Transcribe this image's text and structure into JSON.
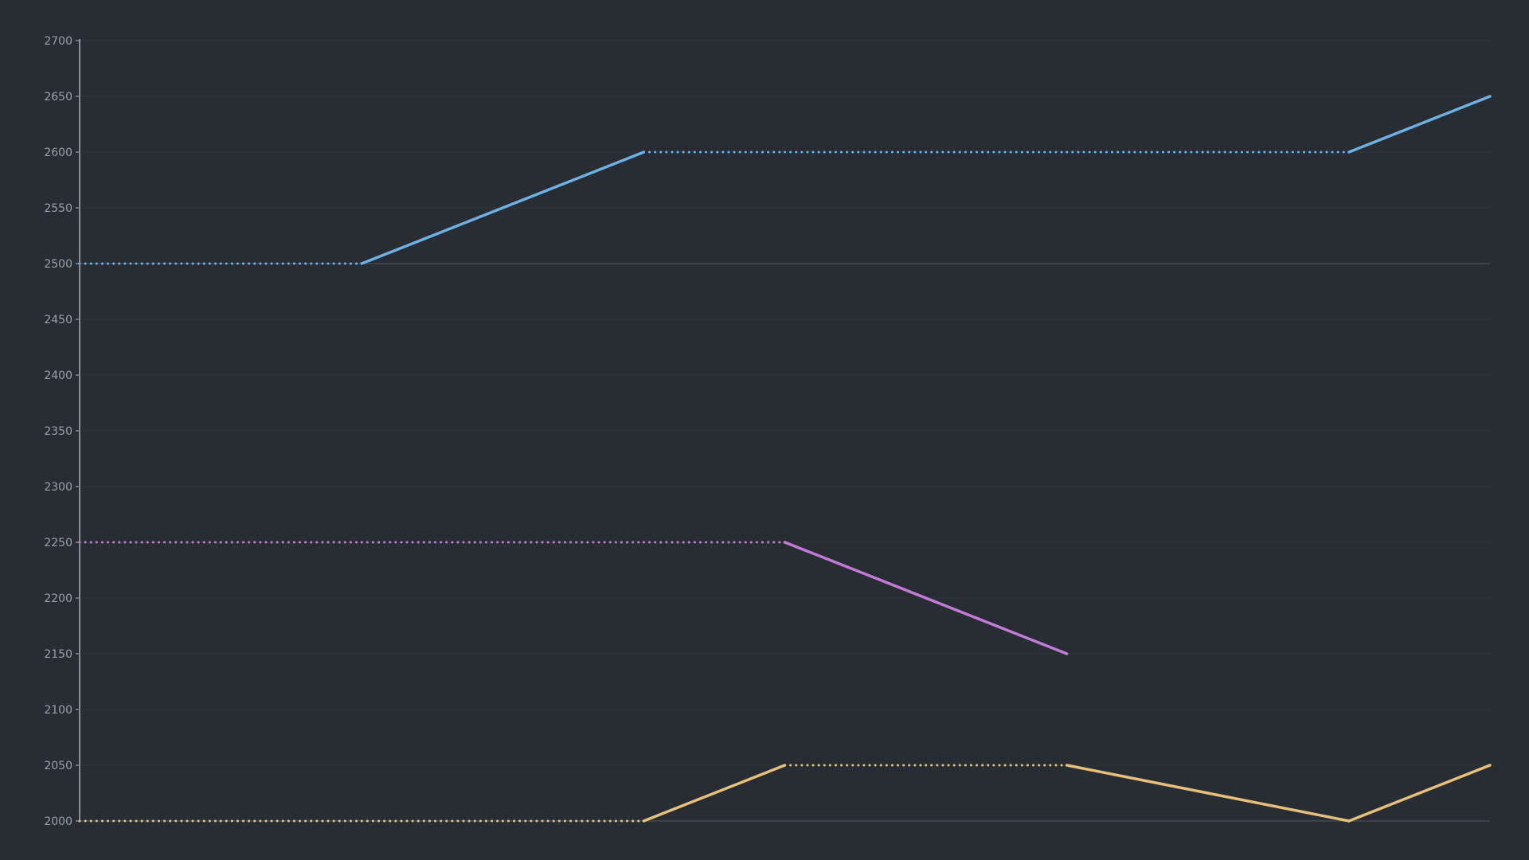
{
  "chart_data": {
    "type": "line",
    "title": "",
    "xlabel": "",
    "ylabel": "",
    "ylim": [
      2000,
      2700
    ],
    "xlim": [
      0,
      10
    ],
    "yticks": [
      2000,
      2050,
      2100,
      2150,
      2200,
      2250,
      2300,
      2350,
      2400,
      2450,
      2500,
      2550,
      2600,
      2650,
      2700
    ],
    "grid": true,
    "legend": "none",
    "x": [
      0,
      1,
      2,
      3,
      4,
      5,
      6,
      7,
      8,
      9,
      10
    ],
    "series": [
      {
        "color": "#6cb0e4",
        "values": [
          2500,
          2500,
          2500,
          2550,
          2600,
          2600,
          2600,
          2600,
          2600,
          2600,
          2650
        ],
        "dotted_segments": [
          0,
          1,
          4,
          5,
          6,
          7,
          8
        ]
      },
      {
        "color": "#c27ad6",
        "values": [
          2250,
          2250,
          2250,
          2250,
          2250,
          2250,
          2200,
          2150,
          null,
          null,
          null
        ],
        "dotted_segments": [
          0,
          1,
          2,
          3,
          4
        ]
      },
      {
        "color": "#e5c07b",
        "values": [
          2000,
          2000,
          2000,
          2000,
          2000,
          2050,
          2050,
          2050,
          2025,
          2000,
          2050
        ],
        "dotted_segments": [
          0,
          1,
          2,
          3,
          5,
          6
        ]
      }
    ]
  }
}
